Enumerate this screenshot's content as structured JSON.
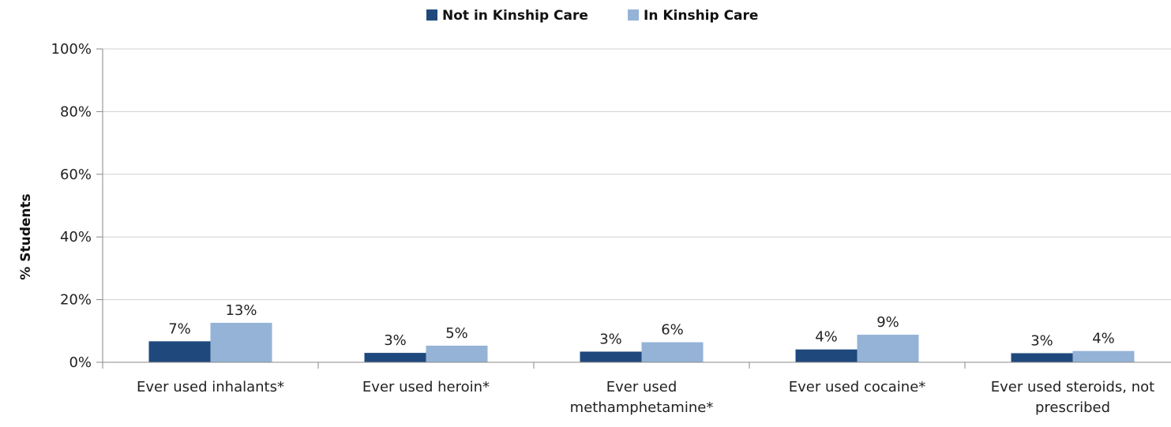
{
  "chart_data": {
    "type": "bar",
    "title": "",
    "xlabel": "",
    "ylabel": "% Students",
    "ylim": [
      0,
      100
    ],
    "yticks": [
      "0%",
      "20%",
      "40%",
      "60%",
      "80%",
      "100%"
    ],
    "categories": [
      [
        "Ever used inhalants*"
      ],
      [
        "Ever used heroin*"
      ],
      [
        "Ever used",
        "methamphetamine*"
      ],
      [
        "Ever used cocaine*"
      ],
      [
        "Ever used steroids, not",
        "prescribed"
      ]
    ],
    "series": [
      {
        "name": "Not in Kinship Care",
        "color": "#1f497d",
        "values": [
          6.7,
          3.0,
          3.4,
          4.1,
          2.9
        ],
        "labels": [
          "7%",
          "3%",
          "3%",
          "4%",
          "3%"
        ]
      },
      {
        "name": "In Kinship Care",
        "color": "#95b3d7",
        "values": [
          12.6,
          5.3,
          6.4,
          8.8,
          3.6
        ],
        "labels": [
          "13%",
          "5%",
          "6%",
          "9%",
          "4%"
        ]
      }
    ],
    "grid": true,
    "legend_position": "top-center"
  }
}
